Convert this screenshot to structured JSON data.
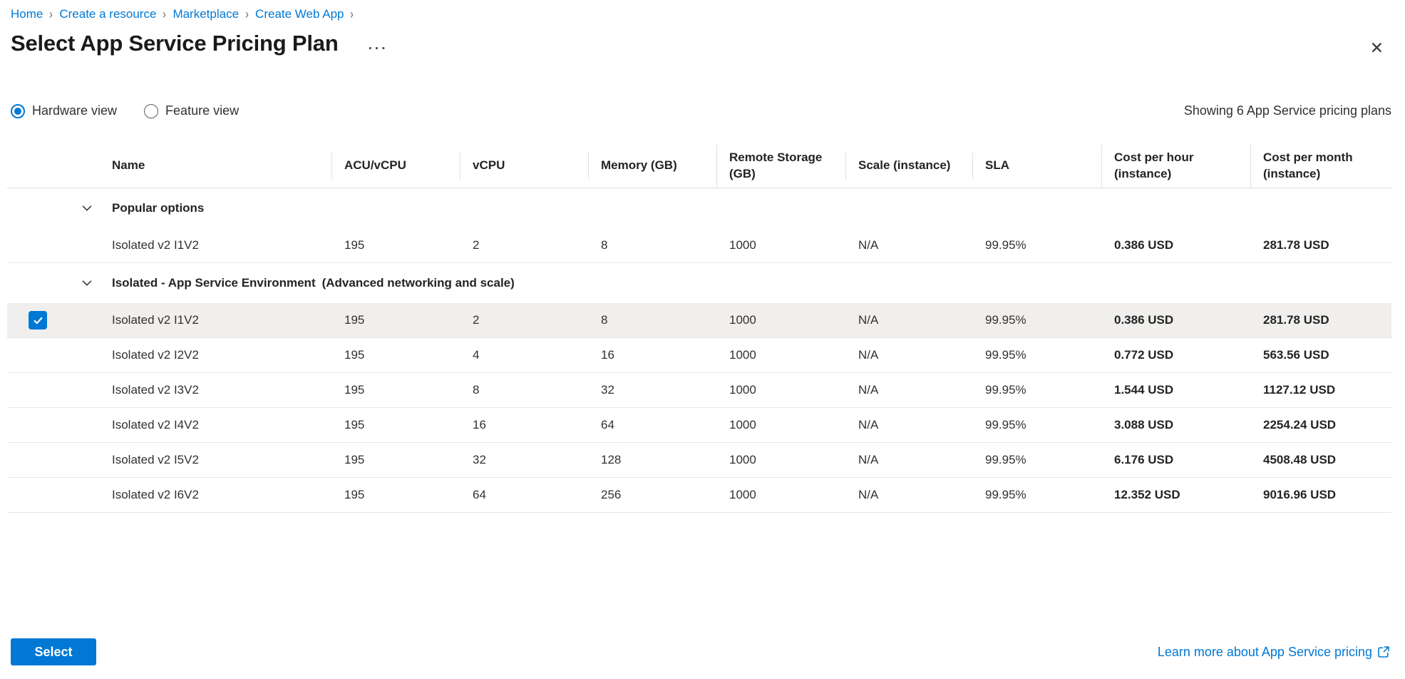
{
  "breadcrumb": {
    "items": [
      "Home",
      "Create a resource",
      "Marketplace",
      "Create Web App"
    ],
    "separator": "›"
  },
  "header": {
    "title": "Select App Service Pricing Plan",
    "more_label": "···",
    "close_label": "✕"
  },
  "view_toggle": {
    "options": [
      {
        "label": "Hardware view",
        "selected": true
      },
      {
        "label": "Feature view",
        "selected": false
      }
    ],
    "summary": "Showing 6 App Service pricing plans"
  },
  "table": {
    "columns": [
      "Name",
      "ACU/vCPU",
      "vCPU",
      "Memory (GB)",
      "Remote Storage (GB)",
      "Scale (instance)",
      "SLA",
      "Cost per hour (instance)",
      "Cost per month (instance)"
    ],
    "groups": [
      {
        "label": "Popular options",
        "suffix": "",
        "rows": [
          {
            "name": "Isolated v2 I1V2",
            "acu": "195",
            "vcpu": "2",
            "memory": "8",
            "storage": "1000",
            "scale": "N/A",
            "sla": "99.95%",
            "cost_hour": "0.386 USD",
            "cost_month": "281.78 USD",
            "selected": false
          }
        ]
      },
      {
        "label": "Isolated - App Service Environment",
        "suffix": "(Advanced networking and scale)",
        "rows": [
          {
            "name": "Isolated v2 I1V2",
            "acu": "195",
            "vcpu": "2",
            "memory": "8",
            "storage": "1000",
            "scale": "N/A",
            "sla": "99.95%",
            "cost_hour": "0.386 USD",
            "cost_month": "281.78 USD",
            "selected": true
          },
          {
            "name": "Isolated v2 I2V2",
            "acu": "195",
            "vcpu": "4",
            "memory": "16",
            "storage": "1000",
            "scale": "N/A",
            "sla": "99.95%",
            "cost_hour": "0.772 USD",
            "cost_month": "563.56 USD",
            "selected": false
          },
          {
            "name": "Isolated v2 I3V2",
            "acu": "195",
            "vcpu": "8",
            "memory": "32",
            "storage": "1000",
            "scale": "N/A",
            "sla": "99.95%",
            "cost_hour": "1.544 USD",
            "cost_month": "1127.12 USD",
            "selected": false
          },
          {
            "name": "Isolated v2 I4V2",
            "acu": "195",
            "vcpu": "16",
            "memory": "64",
            "storage": "1000",
            "scale": "N/A",
            "sla": "99.95%",
            "cost_hour": "3.088 USD",
            "cost_month": "2254.24 USD",
            "selected": false
          },
          {
            "name": "Isolated v2 I5V2",
            "acu": "195",
            "vcpu": "32",
            "memory": "128",
            "storage": "1000",
            "scale": "N/A",
            "sla": "99.95%",
            "cost_hour": "6.176 USD",
            "cost_month": "4508.48 USD",
            "selected": false
          },
          {
            "name": "Isolated v2 I6V2",
            "acu": "195",
            "vcpu": "64",
            "memory": "256",
            "storage": "1000",
            "scale": "N/A",
            "sla": "99.95%",
            "cost_hour": "12.352 USD",
            "cost_month": "9016.96 USD",
            "selected": false
          }
        ]
      }
    ]
  },
  "footer": {
    "select_label": "Select",
    "link_label": "Learn more about App Service pricing"
  },
  "colors": {
    "accent": "#0078d4",
    "text": "#323130",
    "divider": "#e8e6e4",
    "selected_row_bg": "#f0efed"
  }
}
